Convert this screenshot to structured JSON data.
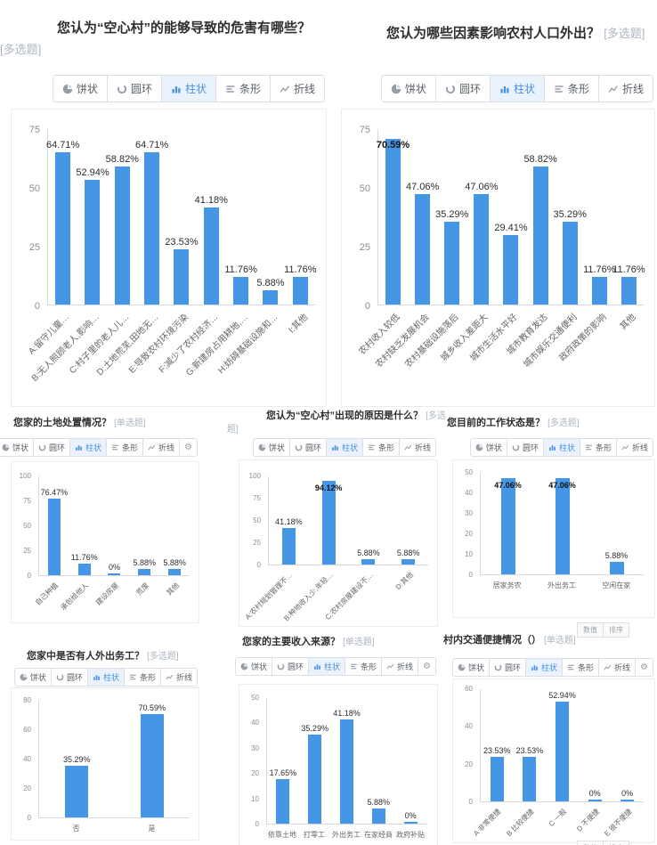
{
  "colors": {
    "bar": "#4596e5",
    "accent": "#4a90e2",
    "title_text": "#2e2e2e",
    "tag_text": "#adb6c2",
    "axis_text": "#8a8f94",
    "value_label_text": "#2d2d2d"
  },
  "toolbar": {
    "pie": "饼状",
    "donut": "圆环",
    "column": "柱状",
    "bar": "条形",
    "line": "折线",
    "active": "柱状",
    "values_button": "数值",
    "sort_button": "排序"
  },
  "chart_data": [
    {
      "type": "bar",
      "title": "您认为“空心村”的能够导致的危害有哪些？",
      "tag": "[多选题]",
      "ylim": [
        0,
        75
      ],
      "yticks": [
        0,
        25,
        50,
        75
      ],
      "categories": [
        "A:留守儿童…",
        "B:无人照顾老人,影响…",
        "C:村子里的老人儿…",
        "D:土地荒芜,田地无…",
        "E:导致农村环境污染",
        "F:减少了农村经济…",
        "G:新建房占用耕地,…",
        "H:妨碍基础设施和…",
        "I:其他"
      ],
      "values": [
        64.71,
        52.94,
        58.82,
        64.71,
        23.53,
        41.18,
        11.76,
        5.88,
        11.76
      ],
      "value_labels": [
        "64.71%",
        "52.94%",
        "58.82%",
        "64.71%",
        "23.53%",
        "41.18%",
        "11.76%",
        "5.88%",
        "11.76%"
      ],
      "label_on_bar": []
    },
    {
      "type": "bar",
      "title": "您认为哪些因素影响农村人口外出？",
      "tag": "[多选题]",
      "ylim": [
        0,
        75
      ],
      "yticks": [
        0,
        25,
        50,
        75
      ],
      "categories": [
        "农村收入较低",
        "农村缺乏发展机会",
        "农村基础设施落后",
        "城乡收入差距大",
        "城市生活水平好",
        "城市教育发达",
        "城市娱乐交通便利",
        "政府政策的影响",
        "其他"
      ],
      "values": [
        70.59,
        47.06,
        35.29,
        47.06,
        29.41,
        58.82,
        35.29,
        11.76,
        11.76
      ],
      "value_labels": [
        "70.59%",
        "47.06%",
        "35.29%",
        "47.06%",
        "29.41%",
        "58.82%",
        "35.29%",
        "11.76%",
        "11.76%"
      ],
      "label_on_bar": [
        0
      ]
    },
    {
      "type": "bar",
      "title": "您家的土地处置情况？",
      "tag": "[单选题]",
      "ylim": [
        0,
        100
      ],
      "yticks": [
        0,
        25,
        50,
        75,
        100
      ],
      "categories": [
        "自己种植",
        "承包给他人",
        "建设房屋",
        "荒废",
        "其他"
      ],
      "values": [
        76.47,
        11.76,
        0,
        5.88,
        5.88
      ],
      "value_labels": [
        "76.47%",
        "11.76%",
        "0%",
        "5.88%",
        "5.88%"
      ],
      "label_on_bar": []
    },
    {
      "type": "bar",
      "title": "您认为“空心村”出现的原因是什么？",
      "tag": "[多选题]",
      "ylim": [
        0,
        100
      ],
      "yticks": [
        0,
        25,
        50,
        75,
        100
      ],
      "categories": [
        "A:农村规划管理不…",
        "B:种地收入少,年轻…",
        "C:农村房屋建设不…",
        "D:其他"
      ],
      "values": [
        41.18,
        94.12,
        5.88,
        5.88
      ],
      "value_labels": [
        "41.18%",
        "94.12%",
        "5.88%",
        "5.88%"
      ],
      "label_on_bar": [
        1
      ]
    },
    {
      "type": "bar",
      "title": "您目前的工作状态是？",
      "tag": "[多选题]",
      "ylim": [
        0,
        50
      ],
      "yticks": [
        0,
        10,
        20,
        30,
        40,
        50
      ],
      "categories": [
        "居家务农",
        "外出务工",
        "空闲在家"
      ],
      "values": [
        47.06,
        47.06,
        5.88
      ],
      "value_labels": [
        "47.06%",
        "47.06%",
        "5.88%"
      ],
      "label_on_bar": [
        0,
        1
      ]
    },
    {
      "type": "bar",
      "title": "您家中是否有人外出务工？",
      "tag": "[多选题]",
      "ylim": [
        0,
        80
      ],
      "yticks": [
        0,
        20,
        40,
        60,
        80
      ],
      "categories": [
        "否",
        "是"
      ],
      "values": [
        35.29,
        70.59
      ],
      "value_labels": [
        "35.29%",
        "70.59%"
      ],
      "label_on_bar": []
    },
    {
      "type": "bar",
      "title": "您家的主要收入来源？",
      "tag": "[单选题]",
      "ylim": [
        0,
        50
      ],
      "yticks": [
        0,
        10,
        20,
        30,
        40,
        50
      ],
      "categories": [
        "依靠土地",
        "打零工",
        "外出务工",
        "在家经商",
        "政府补贴"
      ],
      "values": [
        17.65,
        35.29,
        41.18,
        5.88,
        0
      ],
      "value_labels": [
        "17.65%",
        "35.29%",
        "41.18%",
        "5.88%",
        "0%"
      ],
      "label_on_bar": []
    },
    {
      "type": "bar",
      "title": "村内交通便捷情况（）",
      "tag": "[单选题]",
      "ylim": [
        0,
        60
      ],
      "yticks": [
        0,
        20,
        40,
        60
      ],
      "categories": [
        "A 非常便捷",
        "B 比较便捷",
        "C 一般",
        "D 不便捷",
        "E 很不便捷"
      ],
      "values": [
        23.53,
        23.53,
        52.94,
        0,
        0
      ],
      "value_labels": [
        "23.53%",
        "23.53%",
        "52.94%",
        "0%",
        "0%"
      ],
      "label_on_bar": []
    }
  ]
}
